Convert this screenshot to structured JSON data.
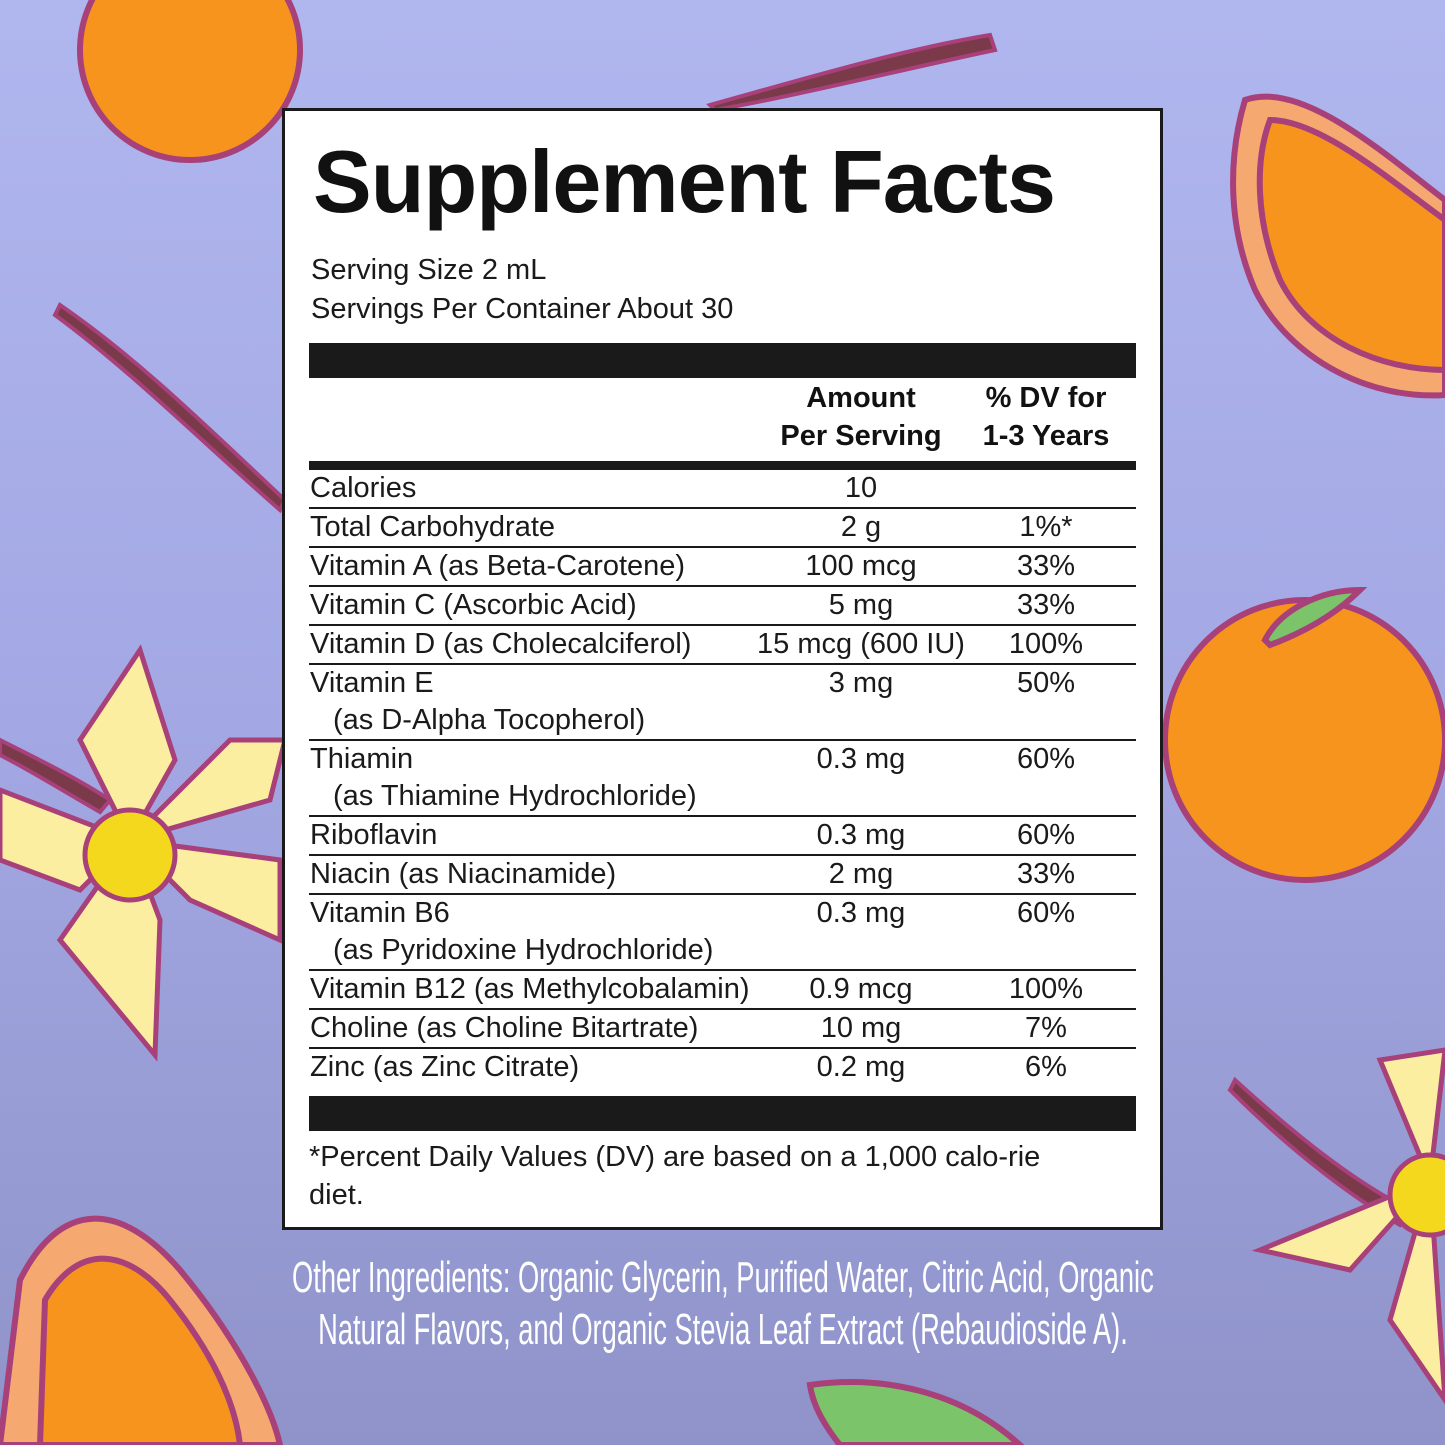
{
  "title": "Supplement Facts",
  "serving_size": "Serving Size 2 mL",
  "servings_per_container": "Servings Per Container About 30",
  "header": {
    "amount_line1": "Amount",
    "amount_line2": "Per Serving",
    "dv_line1": "% DV for",
    "dv_line2": "1-3 Years"
  },
  "rows": [
    {
      "name": "Calories",
      "sub": "",
      "amount": "10",
      "dv": ""
    },
    {
      "name": "Total Carbohydrate",
      "sub": "",
      "amount": "2 g",
      "dv": "1%*"
    },
    {
      "name": "Vitamin A (as Beta-Carotene)",
      "sub": "",
      "amount": "100 mcg",
      "dv": "33%"
    },
    {
      "name": "Vitamin C (Ascorbic Acid)",
      "sub": "",
      "amount": "5 mg",
      "dv": "33%"
    },
    {
      "name": "Vitamin D (as Cholecalciferol)",
      "sub": "",
      "amount": "15 mcg (600 IU)",
      "dv": "100%"
    },
    {
      "name": "Vitamin E",
      "sub": "(as D-Alpha Tocopherol)",
      "amount": "3 mg",
      "dv": "50%"
    },
    {
      "name": "Thiamin",
      "sub": "(as Thiamine Hydrochloride)",
      "amount": "0.3 mg",
      "dv": "60%"
    },
    {
      "name": "Riboflavin",
      "sub": "",
      "amount": "0.3 mg",
      "dv": "60%"
    },
    {
      "name": "Niacin (as Niacinamide)",
      "sub": "",
      "amount": "2 mg",
      "dv": "33%"
    },
    {
      "name": "Vitamin B6",
      "sub": "(as Pyridoxine Hydrochloride)",
      "amount": "0.3 mg",
      "dv": "60%"
    },
    {
      "name": "Vitamin B12 (as Methylcobalamin)",
      "sub": "",
      "amount": "0.9 mcg",
      "dv": "100%"
    },
    {
      "name": "Choline (as Choline Bitartrate)",
      "sub": "",
      "amount": "10 mg",
      "dv": "7%"
    },
    {
      "name": "Zinc (as Zinc Citrate)",
      "sub": "",
      "amount": "0.2 mg",
      "dv": "6%"
    }
  ],
  "footnote": "*Percent Daily Values (DV) are based on a 1,000 calo-rie diet.",
  "other_ingredients": {
    "line1": "Other Ingredients: Organic Glycerin, Purified Water, Citric Acid, Organic",
    "line2": "Natural Flavors, and Organic Stevia Leaf Extract (Rebaudioside A)."
  },
  "colors": {
    "background": "#a3a8e4",
    "orange": "#f7941d",
    "outline": "#a8407a",
    "flower": "#fbeea0",
    "leaf": "#7cc46a"
  }
}
